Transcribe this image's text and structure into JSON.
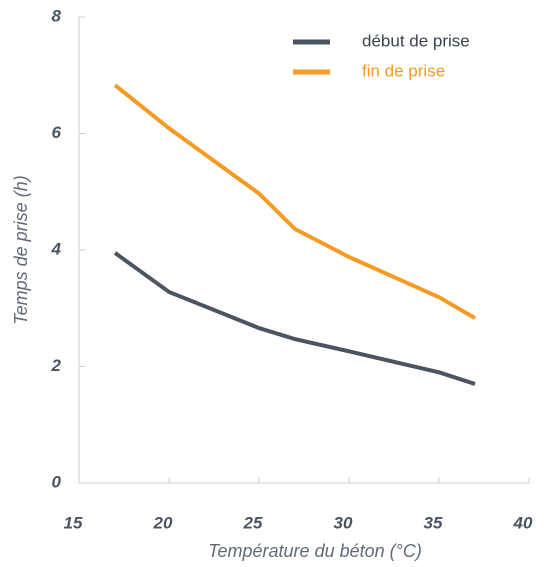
{
  "chart_data": {
    "type": "line",
    "xlabel": "Température du béton (°C)",
    "ylabel": "Temps de prise (h)",
    "x": [
      17,
      20,
      25,
      27,
      30,
      35,
      37
    ],
    "series": [
      {
        "name": "début de prise",
        "color": "#4a5462",
        "values": [
          3.95,
          3.28,
          2.66,
          2.47,
          2.26,
          1.9,
          1.7
        ]
      },
      {
        "name": "fin de prise",
        "color": "#f59a23",
        "values": [
          6.83,
          6.09,
          4.97,
          4.36,
          3.88,
          3.19,
          2.83
        ]
      }
    ],
    "xlim": [
      15,
      40
    ],
    "xticks": [
      15,
      20,
      25,
      30,
      35,
      40
    ],
    "ylim": [
      0,
      8
    ],
    "yticks": [
      0,
      2,
      4,
      6,
      8
    ],
    "grid": false,
    "legend": "upper right"
  }
}
